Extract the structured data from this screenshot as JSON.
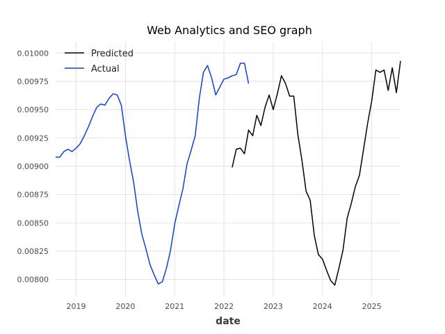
{
  "chart_data": {
    "type": "line",
    "title": "Web Analytics and SEO graph",
    "xlabel": "date",
    "ylabel": "",
    "x_ticks": [
      "2019",
      "2020",
      "2021",
      "2022",
      "2023",
      "2024",
      "2025"
    ],
    "y_ticks": [
      "0.00800",
      "0.00825",
      "0.00850",
      "0.00875",
      "0.00900",
      "0.00925",
      "0.00950",
      "0.00975",
      "0.01000"
    ],
    "xlim": [
      "2018-08-01",
      "2025-08-01"
    ],
    "ylim": [
      0.00785,
      0.0101
    ],
    "grid": true,
    "legend": "top-left",
    "series": [
      {
        "name": "Predicted",
        "color": "#000000",
        "points": [
          [
            "2022-03",
            0.00899
          ],
          [
            "2022-04",
            0.00915
          ],
          [
            "2022-05",
            0.00916
          ],
          [
            "2022-06",
            0.00911
          ],
          [
            "2022-07",
            0.00932
          ],
          [
            "2022-08",
            0.00927
          ],
          [
            "2022-09",
            0.00945
          ],
          [
            "2022-10",
            0.00936
          ],
          [
            "2022-11",
            0.00952
          ],
          [
            "2022-12",
            0.00963
          ],
          [
            "2023-01",
            0.0095
          ],
          [
            "2023-02",
            0.00964
          ],
          [
            "2023-03",
            0.0098
          ],
          [
            "2023-04",
            0.00973
          ],
          [
            "2023-05",
            0.00962
          ],
          [
            "2023-06",
            0.00962
          ],
          [
            "2023-07",
            0.00928
          ],
          [
            "2023-08",
            0.00905
          ],
          [
            "2023-09",
            0.00878
          ],
          [
            "2023-10",
            0.0087
          ],
          [
            "2023-11",
            0.00839
          ],
          [
            "2023-12",
            0.00822
          ],
          [
            "2024-01",
            0.00818
          ],
          [
            "2024-02",
            0.00808
          ],
          [
            "2024-03",
            0.00799
          ],
          [
            "2024-04",
            0.00795
          ],
          [
            "2024-05",
            0.0081
          ],
          [
            "2024-06",
            0.00826
          ],
          [
            "2024-07",
            0.00854
          ],
          [
            "2024-08",
            0.00867
          ],
          [
            "2024-09",
            0.00882
          ],
          [
            "2024-10",
            0.00892
          ],
          [
            "2024-11",
            0.00915
          ],
          [
            "2024-12",
            0.00938
          ],
          [
            "2025-01",
            0.00958
          ],
          [
            "2025-02",
            0.00985
          ],
          [
            "2025-03",
            0.00983
          ],
          [
            "2025-04",
            0.00985
          ],
          [
            "2025-05",
            0.00967
          ],
          [
            "2025-06",
            0.00987
          ],
          [
            "2025-07",
            0.00965
          ],
          [
            "2025-08",
            0.00993
          ]
        ]
      },
      {
        "name": "Actual",
        "color": "#0b3fe0",
        "points": [
          [
            "2018-08",
            0.00908
          ],
          [
            "2018-09",
            0.00908
          ],
          [
            "2018-10",
            0.00913
          ],
          [
            "2018-11",
            0.00915
          ],
          [
            "2018-12",
            0.00913
          ],
          [
            "2019-01",
            0.00916
          ],
          [
            "2019-02",
            0.0092
          ],
          [
            "2019-03",
            0.00927
          ],
          [
            "2019-04",
            0.00935
          ],
          [
            "2019-05",
            0.00944
          ],
          [
            "2019-06",
            0.00952
          ],
          [
            "2019-07",
            0.00955
          ],
          [
            "2019-08",
            0.00954
          ],
          [
            "2019-09",
            0.0096
          ],
          [
            "2019-10",
            0.00964
          ],
          [
            "2019-11",
            0.00963
          ],
          [
            "2019-12",
            0.00954
          ],
          [
            "2020-01",
            0.00927
          ],
          [
            "2020-02",
            0.00905
          ],
          [
            "2020-03",
            0.00886
          ],
          [
            "2020-04",
            0.0086
          ],
          [
            "2020-05",
            0.0084
          ],
          [
            "2020-06",
            0.00827
          ],
          [
            "2020-07",
            0.00813
          ],
          [
            "2020-08",
            0.00804
          ],
          [
            "2020-09",
            0.00796
          ],
          [
            "2020-10",
            0.00798
          ],
          [
            "2020-11",
            0.0081
          ],
          [
            "2020-12",
            0.00826
          ],
          [
            "2021-01",
            0.00849
          ],
          [
            "2021-02",
            0.00865
          ],
          [
            "2021-03",
            0.0088
          ],
          [
            "2021-04",
            0.00902
          ],
          [
            "2021-05",
            0.00914
          ],
          [
            "2021-06",
            0.00927
          ],
          [
            "2021-07",
            0.0096
          ],
          [
            "2021-08",
            0.00983
          ],
          [
            "2021-09",
            0.00989
          ],
          [
            "2021-10",
            0.00978
          ],
          [
            "2021-11",
            0.00963
          ],
          [
            "2021-12",
            0.0097
          ],
          [
            "2022-01",
            0.00977
          ],
          [
            "2022-02",
            0.00978
          ],
          [
            "2022-03",
            0.0098
          ],
          [
            "2022-04",
            0.00981
          ],
          [
            "2022-05",
            0.00991
          ],
          [
            "2022-06",
            0.00991
          ],
          [
            "2022-07",
            0.00973
          ]
        ]
      }
    ]
  }
}
